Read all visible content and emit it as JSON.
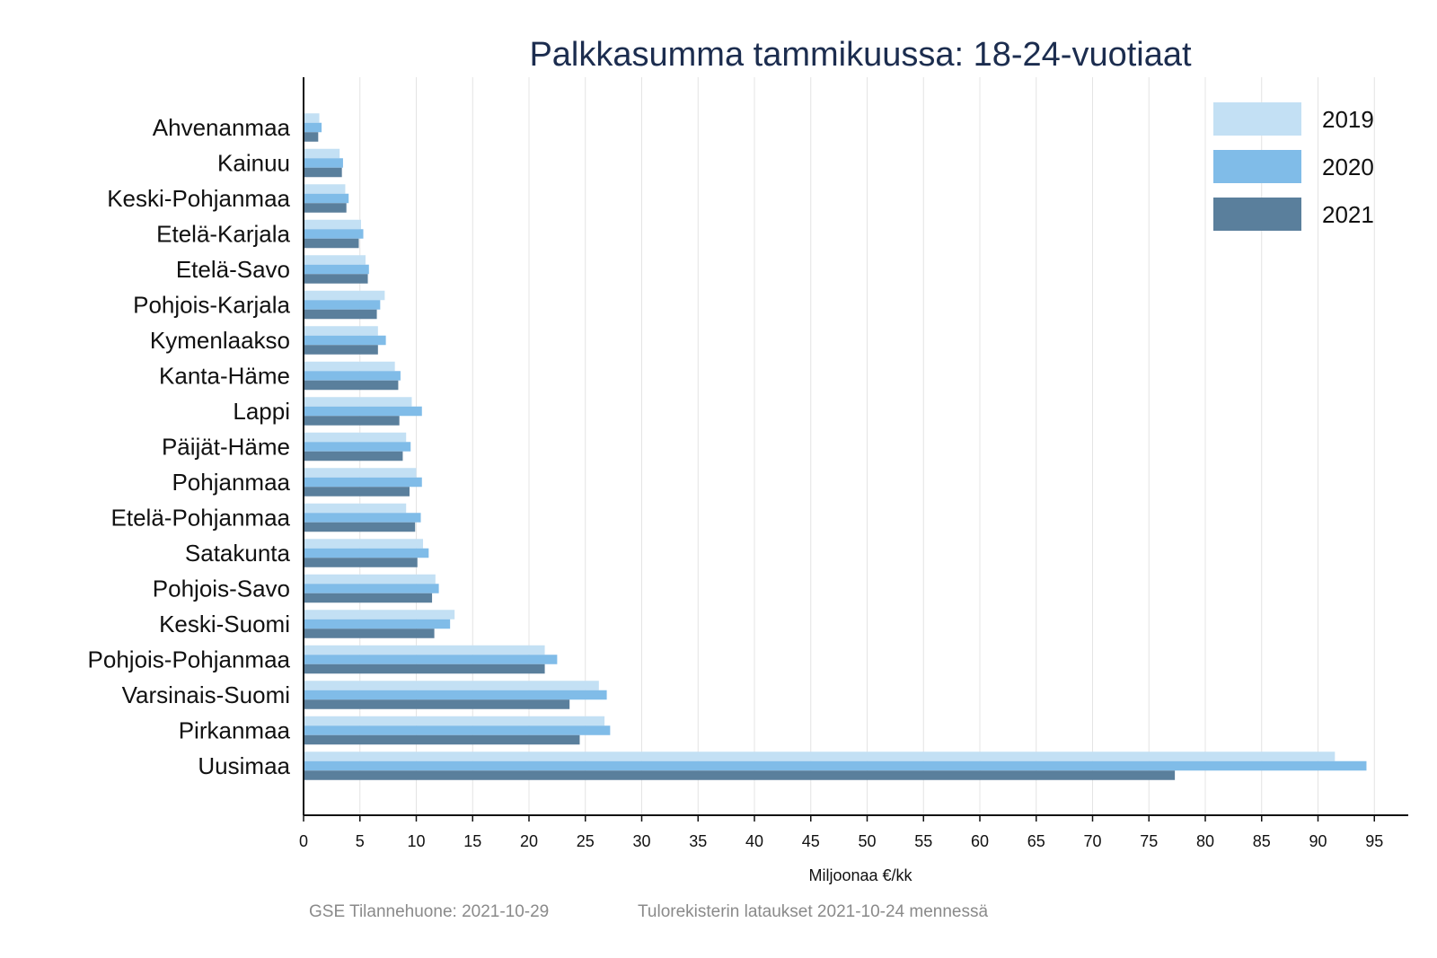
{
  "chart_data": {
    "type": "bar",
    "orientation": "horizontal",
    "title": "Palkkasumma tammikuussa: 18-24-vuotiaat",
    "xlabel": "Miljoonaa €/kk",
    "ylabel": "",
    "xlim": [
      0,
      98
    ],
    "xticks": [
      0,
      5,
      10,
      15,
      20,
      25,
      30,
      35,
      40,
      45,
      50,
      55,
      60,
      65,
      70,
      75,
      80,
      85,
      90,
      95
    ],
    "grid": "vertical",
    "legend_position": "top-right",
    "categories": [
      "Ahvenanmaa",
      "Kainuu",
      "Keski-Pohjanmaa",
      "Etelä-Karjala",
      "Etelä-Savo",
      "Pohjois-Karjala",
      "Kymenlaakso",
      "Kanta-Häme",
      "Lappi",
      "Päijät-Häme",
      "Pohjanmaa",
      "Etelä-Pohjanmaa",
      "Satakunta",
      "Pohjois-Savo",
      "Keski-Suomi",
      "Pohjois-Pohjanmaa",
      "Varsinais-Suomi",
      "Pirkanmaa",
      "Uusimaa"
    ],
    "series": [
      {
        "name": "2019",
        "color": "#c3e0f4",
        "values": [
          1.4,
          3.2,
          3.7,
          5.1,
          5.5,
          7.2,
          6.6,
          8.1,
          9.6,
          9.1,
          10.0,
          9.1,
          10.6,
          11.7,
          13.4,
          21.4,
          26.2,
          26.7,
          91.5
        ]
      },
      {
        "name": "2020",
        "color": "#80bce8",
        "values": [
          1.6,
          3.5,
          4.0,
          5.3,
          5.8,
          6.8,
          7.3,
          8.6,
          10.5,
          9.5,
          10.5,
          10.4,
          11.1,
          12.0,
          13.0,
          22.5,
          26.9,
          27.2,
          94.3
        ]
      },
      {
        "name": "2021",
        "color": "#5a7f9c",
        "values": [
          1.3,
          3.4,
          3.8,
          4.9,
          5.7,
          6.5,
          6.6,
          8.4,
          8.5,
          8.8,
          9.4,
          9.9,
          10.1,
          11.4,
          11.6,
          21.4,
          23.6,
          24.5,
          77.3
        ]
      }
    ]
  },
  "footer": {
    "source": "GSE Tilannehuone: 2021-10-29",
    "note": "Tulorekisterin lataukset 2021-10-24 mennessä"
  }
}
